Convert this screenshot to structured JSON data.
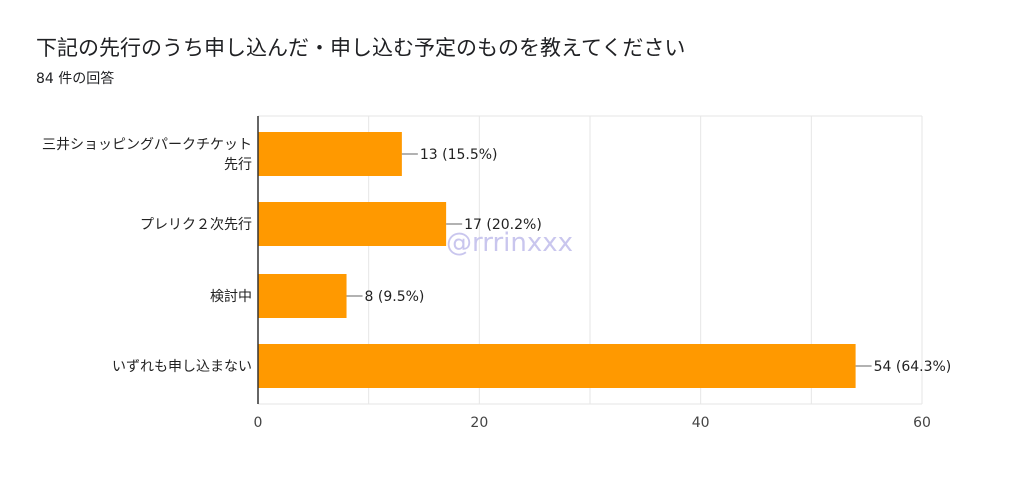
{
  "title": "下記の先行のうち申し込んだ・申し込む予定のものを教えてください",
  "subtitle": "84 件の回答",
  "watermark": "@rrrinxxx",
  "colors": {
    "bar": "#ff9900",
    "grid": "#e6e6e6",
    "axis": "#333333"
  },
  "chart_data": {
    "type": "bar",
    "orientation": "horizontal",
    "categories": [
      [
        "三井ショッピングパークチケット",
        "先行"
      ],
      [
        "プレリク２次先行"
      ],
      [
        "検討中"
      ],
      [
        "いずれも申し込まない"
      ]
    ],
    "values": [
      13,
      17,
      8,
      54
    ],
    "data_labels": [
      "13 (15.5%)",
      "17 (20.2%)",
      "8 (9.5%)",
      "54 (64.3%)"
    ],
    "xlim": [
      0,
      60
    ],
    "xticks": [
      0,
      20,
      40,
      60
    ],
    "grid": true
  }
}
